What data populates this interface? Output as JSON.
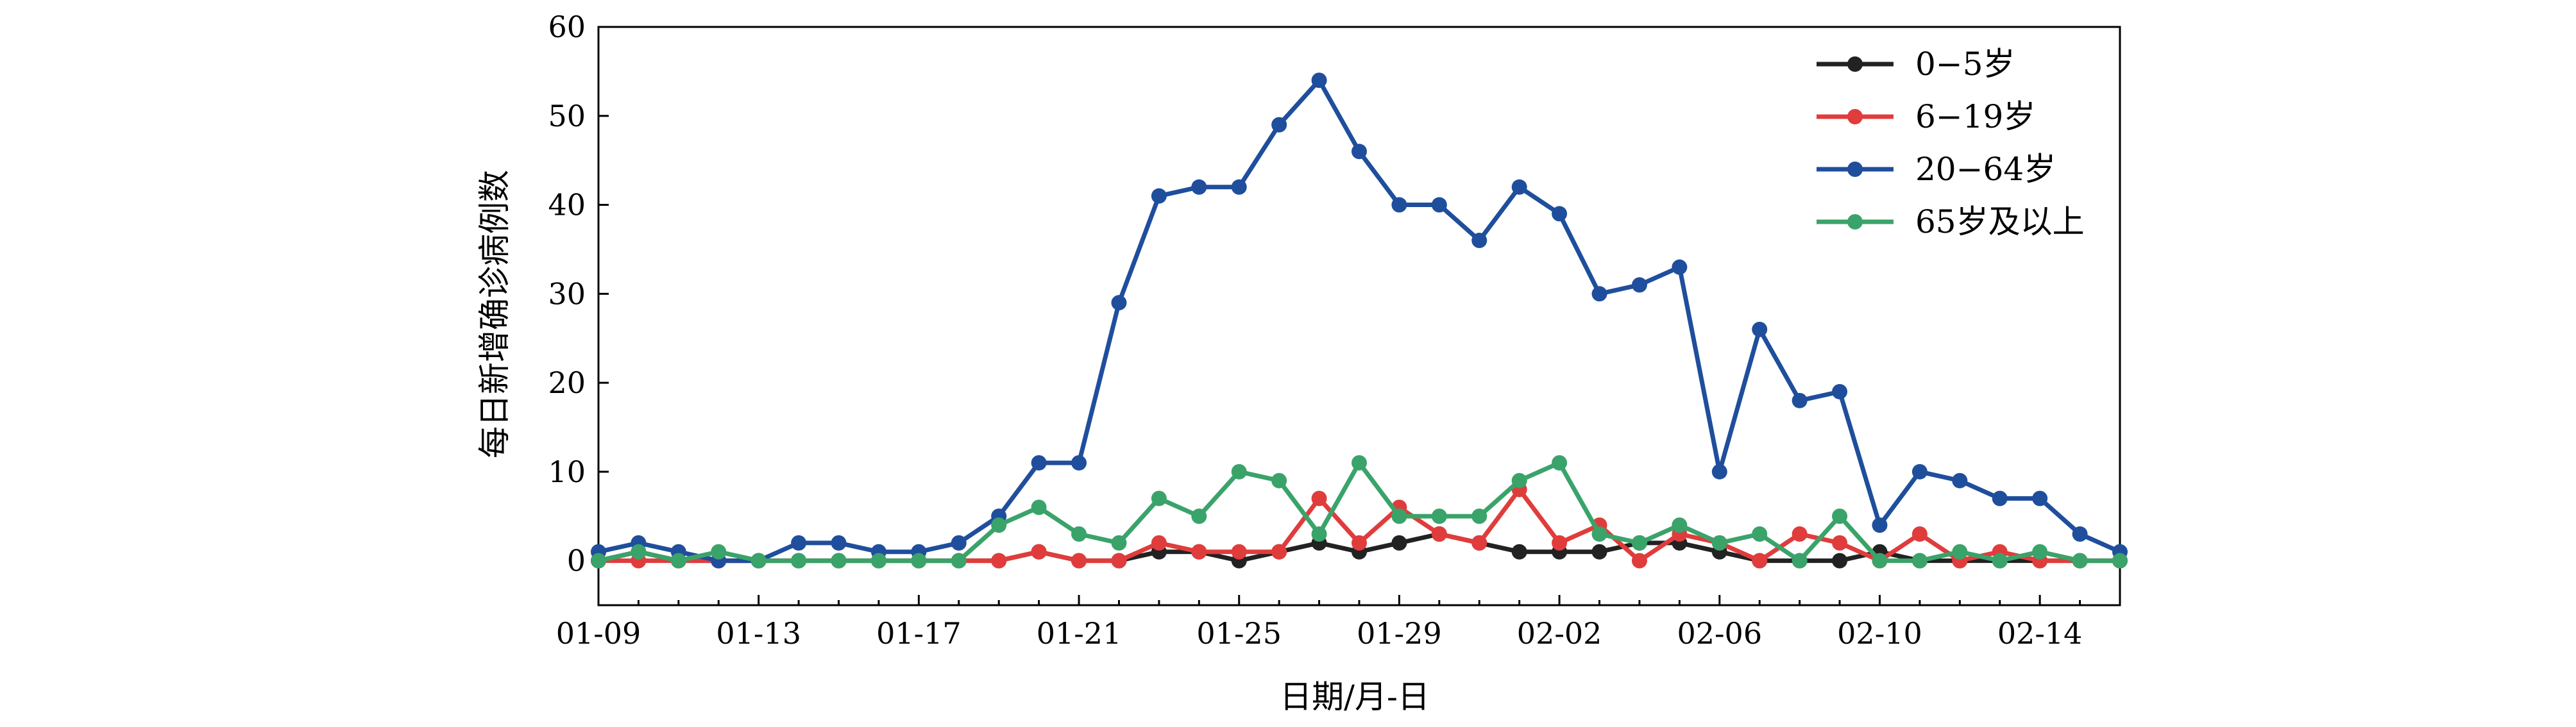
{
  "chart_data": {
    "type": "line",
    "title": "",
    "xlabel": "日期/月-日",
    "ylabel": "每日新增确诊病例数",
    "ylim": [
      -5,
      60
    ],
    "yticks": [
      0,
      10,
      20,
      30,
      40,
      50,
      60
    ],
    "x": [
      "01-09",
      "01-10",
      "01-11",
      "01-12",
      "01-13",
      "01-14",
      "01-15",
      "01-16",
      "01-17",
      "01-18",
      "01-19",
      "01-20",
      "01-21",
      "01-22",
      "01-23",
      "01-24",
      "01-25",
      "01-26",
      "01-27",
      "01-28",
      "01-29",
      "01-30",
      "01-31",
      "02-01",
      "02-02",
      "02-03",
      "02-04",
      "02-05",
      "02-06",
      "02-07",
      "02-08",
      "02-09",
      "02-10",
      "02-11",
      "02-12",
      "02-13",
      "02-14",
      "02-15",
      "02-16"
    ],
    "xtick_labels": [
      "01-09",
      "01-13",
      "01-17",
      "01-21",
      "01-25",
      "01-29",
      "02-02",
      "02-06",
      "02-10",
      "02-14"
    ],
    "legend_position": "top-right",
    "grid": false,
    "series": [
      {
        "name": "0−5岁",
        "color": "#222222",
        "values": [
          0,
          1,
          0,
          0,
          0,
          0,
          0,
          0,
          0,
          0,
          0,
          1,
          0,
          0,
          1,
          1,
          0,
          1,
          2,
          1,
          2,
          3,
          2,
          1,
          1,
          1,
          2,
          2,
          1,
          0,
          0,
          0,
          1,
          0,
          0,
          0,
          0,
          0,
          0
        ]
      },
      {
        "name": "6−19岁",
        "color": "#e03c3c",
        "values": [
          0,
          0,
          0,
          0,
          0,
          0,
          0,
          0,
          0,
          0,
          0,
          1,
          0,
          0,
          2,
          1,
          1,
          1,
          7,
          2,
          6,
          3,
          2,
          8,
          2,
          4,
          0,
          3,
          2,
          0,
          3,
          2,
          0,
          3,
          0,
          1,
          0,
          0,
          0
        ]
      },
      {
        "name": "20−64岁",
        "color": "#1f4e9c",
        "values": [
          1,
          2,
          1,
          0,
          0,
          2,
          2,
          1,
          1,
          2,
          5,
          11,
          11,
          29,
          41,
          42,
          42,
          49,
          54,
          46,
          40,
          40,
          36,
          42,
          39,
          30,
          31,
          33,
          10,
          26,
          18,
          19,
          4,
          10,
          9,
          7,
          7,
          3,
          1
        ]
      },
      {
        "name": "65岁及以上",
        "color": "#3aa36a",
        "values": [
          0,
          1,
          0,
          1,
          0,
          0,
          0,
          0,
          0,
          0,
          4,
          6,
          3,
          2,
          7,
          5,
          10,
          9,
          3,
          11,
          5,
          5,
          5,
          9,
          11,
          3,
          2,
          4,
          2,
          3,
          0,
          5,
          0,
          0,
          1,
          0,
          1,
          0,
          0
        ]
      }
    ]
  }
}
